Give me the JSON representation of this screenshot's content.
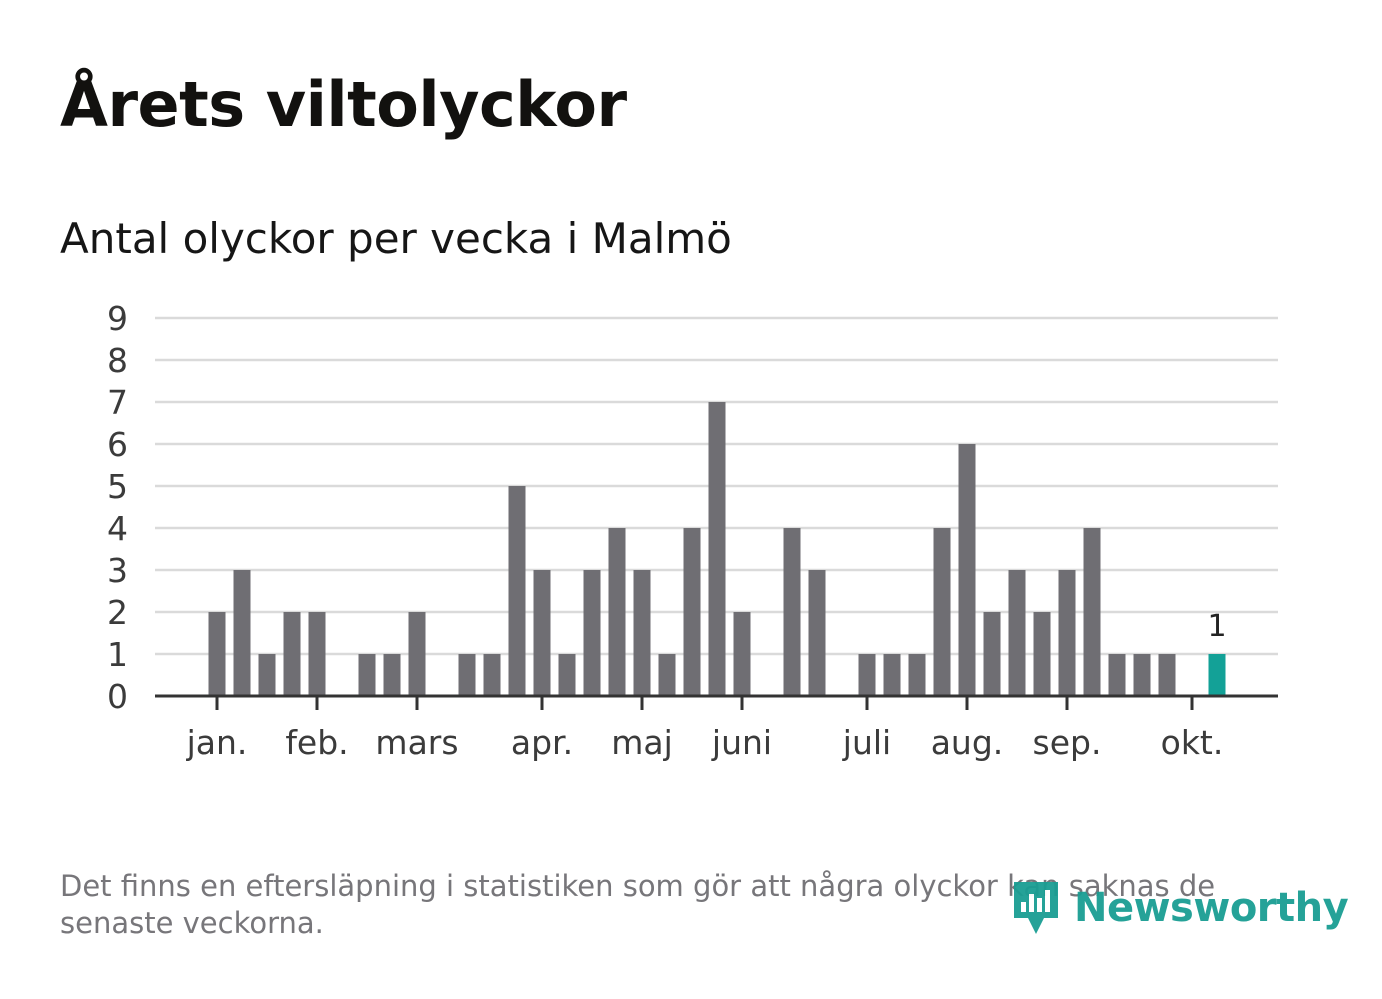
{
  "title": "Årets viltolyckor",
  "subtitle": "Antal olyckor per vecka i Malmö",
  "footnote": "Det finns en eftersläpning i statistiken som gör att några olyckor kan saknas de senaste veckorna.",
  "brand": {
    "name": "Newsworthy",
    "icon": "newsworthy-logo-icon",
    "color": "#1a9e93"
  },
  "colors": {
    "bar": "#6f6e73",
    "highlight": "#13a197",
    "grid": "#dadada",
    "axis": "#333333"
  },
  "chart_data": {
    "type": "bar",
    "title": "Antal olyckor per vecka i Malmö",
    "xlabel": "",
    "ylabel": "",
    "ylim": [
      0,
      9
    ],
    "yticks": [
      0,
      1,
      2,
      3,
      4,
      5,
      6,
      7,
      8,
      9
    ],
    "grid": true,
    "x": [
      1,
      2,
      3,
      4,
      5,
      6,
      7,
      8,
      9,
      10,
      11,
      12,
      13,
      14,
      15,
      16,
      17,
      18,
      19,
      20,
      21,
      22,
      23,
      24,
      25,
      26,
      27,
      28,
      29,
      30,
      31,
      32,
      33,
      34,
      35,
      36,
      37,
      38,
      39,
      40,
      41,
      42,
      43,
      44
    ],
    "values": [
      0,
      0,
      2,
      3,
      1,
      2,
      2,
      0,
      1,
      1,
      2,
      0,
      1,
      1,
      5,
      3,
      1,
      3,
      4,
      3,
      1,
      4,
      7,
      2,
      0,
      4,
      3,
      0,
      1,
      1,
      1,
      4,
      6,
      2,
      3,
      2,
      3,
      4,
      1,
      1,
      1,
      0,
      1,
      0
    ],
    "highlight_index": 42,
    "highlight_label": "1",
    "month_ticks": [
      {
        "label": "jan.",
        "week": 3
      },
      {
        "label": "feb.",
        "week": 7
      },
      {
        "label": "mars",
        "week": 11
      },
      {
        "label": "apr.",
        "week": 16
      },
      {
        "label": "maj",
        "week": 20
      },
      {
        "label": "juni",
        "week": 24
      },
      {
        "label": "juli",
        "week": 29
      },
      {
        "label": "aug.",
        "week": 33
      },
      {
        "label": "sep.",
        "week": 37
      },
      {
        "label": "okt.",
        "week": 42
      }
    ]
  }
}
